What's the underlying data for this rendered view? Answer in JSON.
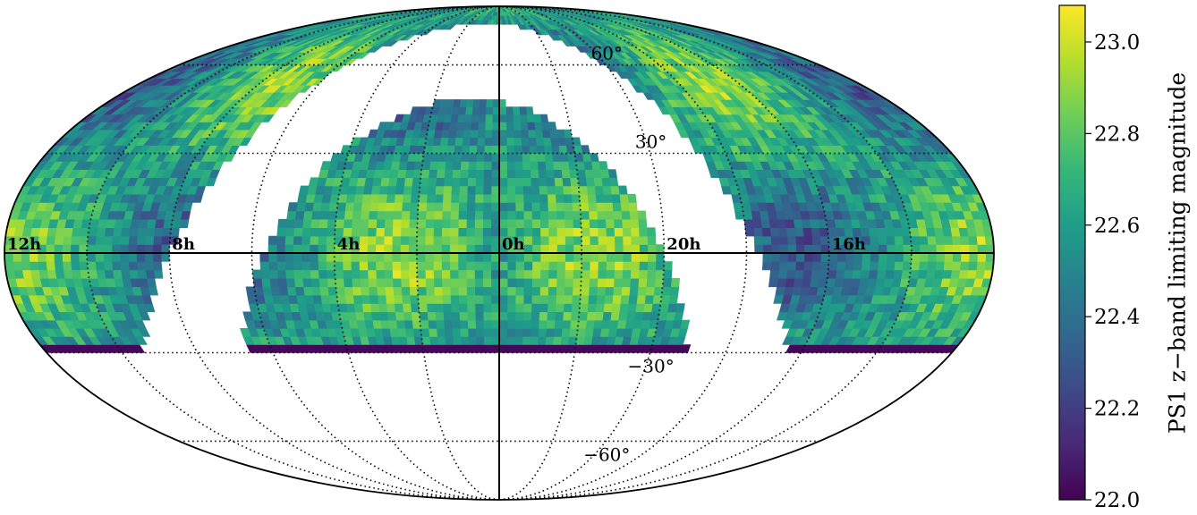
{
  "chart_data": {
    "type": "heatmap",
    "projection": "mollweide",
    "ra_axis_reversed": true,
    "ra_tick_labels": [
      {
        "ra_h": 12,
        "label": "12h"
      },
      {
        "ra_h": 8,
        "label": "8h"
      },
      {
        "ra_h": 4,
        "label": "4h"
      },
      {
        "ra_h": 0,
        "label": "0h"
      },
      {
        "ra_h": 20,
        "label": "20h"
      },
      {
        "ra_h": 16,
        "label": "16h"
      }
    ],
    "dec_tick_labels": [
      {
        "dec": 60,
        "label": "60°"
      },
      {
        "dec": 30,
        "label": "30°"
      },
      {
        "dec": -30,
        "label": "−30°"
      },
      {
        "dec": -60,
        "label": "−60°"
      }
    ],
    "grid": true,
    "coverage_dec_min": -30,
    "colormap": "viridis",
    "colorbar": {
      "label": "PS1 z−band limiting magnitude",
      "range": [
        22.0,
        23.08
      ],
      "ticks": [
        {
          "value": 22.0,
          "label": "22.0"
        },
        {
          "value": 22.2,
          "label": "22.2"
        },
        {
          "value": 22.4,
          "label": "22.4"
        },
        {
          "value": 22.6,
          "label": "22.6"
        },
        {
          "value": 22.8,
          "label": "22.8"
        },
        {
          "value": 23.0,
          "label": "23.0"
        }
      ]
    }
  },
  "colors": {
    "viridis": [
      "#440154",
      "#482878",
      "#3e4989",
      "#31688e",
      "#26828e",
      "#1f9e89",
      "#35b779",
      "#6ece58",
      "#b5de2b",
      "#fde725"
    ]
  }
}
